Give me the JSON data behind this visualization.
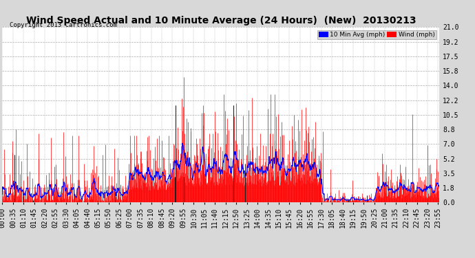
{
  "title": "Wind Speed Actual and 10 Minute Average (24 Hours)  (New)  20130213",
  "copyright": "Copyright 2013 Cartronics.com",
  "yticks": [
    0.0,
    1.8,
    3.5,
    5.2,
    7.0,
    8.8,
    10.5,
    12.2,
    14.0,
    15.8,
    17.5,
    19.2,
    21.0
  ],
  "ymax": 21.0,
  "legend_blue_label": "10 Min Avg (mph)",
  "legend_red_label": "Wind (mph)",
  "bg_color": "#d8d8d8",
  "plot_bg_color": "#ffffff",
  "grid_color": "#aaaaaa",
  "bar_color": "#ff0000",
  "avg_color": "#0000ff",
  "spike_color": "#222222",
  "title_fontsize": 11,
  "copyright_fontsize": 7,
  "tick_fontsize": 7,
  "xtick_interval": 35
}
